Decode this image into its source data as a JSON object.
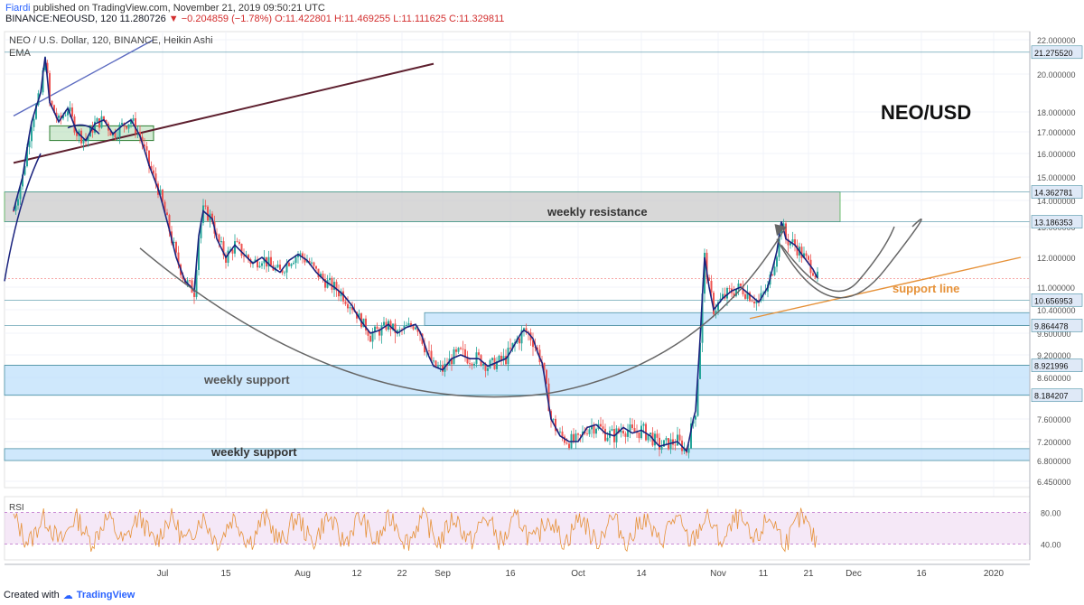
{
  "header": {
    "author": "Fiardi",
    "published": "published on TradingView.com, November 21, 2019 09:50:21 UTC",
    "symbol": "BINANCE:NEOUSD, 120",
    "last": "11.280726",
    "change": "−0.204859 (−1.78%)",
    "open": "O:11.422801",
    "high": "H:11.469255",
    "low": "L:11.111625",
    "close": "C:11.329811"
  },
  "footer": {
    "created": "Created with",
    "brand": "TradingView"
  },
  "chart_data": {
    "type": "candlestick",
    "title": "NEO / U.S. Dollar, 120, BINANCE, Heikin Ashi",
    "indicator": "EMA",
    "big_label": "NEO/USD",
    "colors": {
      "up": "#26a69a",
      "down": "#ef5350",
      "ema": "#1a237e",
      "zone": "#bbdefb",
      "resistance": "#c8c8c8",
      "support_line": "#e69138",
      "rsi": "#e69138"
    },
    "y_ticks": [
      22.0,
      20.0,
      18.0,
      17.0,
      16.0,
      15.0,
      14.0,
      13.0,
      12.0,
      11.0,
      10.4,
      9.6,
      9.2,
      8.6,
      8.2,
      7.6,
      7.2,
      6.8,
      6.45
    ],
    "y_tick_labels": [
      "22.000000",
      "20.000000",
      "18.000000",
      "17.000000",
      "16.000000",
      "15.000000",
      "14.000000",
      "13.000000",
      "12.000000",
      "11.000000",
      "10.400000",
      "9.600000",
      "9.200000",
      "8.600000",
      "8.200000",
      "7.600000",
      "7.200000",
      "6.800000",
      "6.450000"
    ],
    "price_flags": [
      {
        "value": 21.27552,
        "label": "21.275520"
      },
      {
        "value": 14.362781,
        "label": "14.362781"
      },
      {
        "value": 13.186353,
        "label": "13.186353"
      },
      {
        "value": 10.656953,
        "label": "10.656953"
      },
      {
        "value": 9.864478,
        "label": "9.864478"
      },
      {
        "value": 8.921996,
        "label": "8.921996"
      },
      {
        "value": 8.184207,
        "label": "8.184207"
      }
    ],
    "x_tick_labels": [
      "Jul",
      "15",
      "Aug",
      "12",
      "22",
      "Sep",
      "16",
      "Oct",
      "14",
      "Nov",
      "11",
      "21",
      "Dec",
      "16",
      "2020"
    ],
    "x_tick_days": [
      0,
      14,
      31,
      43,
      53,
      62,
      77,
      92,
      106,
      123,
      133,
      143,
      153,
      168,
      184
    ],
    "zones": [
      {
        "name": "weekly resistance",
        "from": 13.186353,
        "to": 14.362781,
        "label": "weekly resistance"
      },
      {
        "name": "upper support zone",
        "from": 9.864478,
        "to": 10.3,
        "label": ""
      },
      {
        "name": "weekly support",
        "from": 8.184207,
        "to": 8.921996,
        "label": "weekly support"
      },
      {
        "name": "lower weekly support",
        "from": 6.8,
        "to": 7.05,
        "label": "weekly support"
      }
    ],
    "support_line_label": "support line",
    "price_path": [
      [
        -33,
        13.6
      ],
      [
        -31,
        15.0
      ],
      [
        -29,
        17.5
      ],
      [
        -27,
        19.0
      ],
      [
        -26,
        21.0
      ],
      [
        -25,
        18.5
      ],
      [
        -23,
        17.5
      ],
      [
        -21,
        18.2
      ],
      [
        -19,
        17.0
      ],
      [
        -17,
        16.6
      ],
      [
        -15,
        17.4
      ],
      [
        -13,
        17.6
      ],
      [
        -11,
        16.9
      ],
      [
        -9,
        17.3
      ],
      [
        -7,
        17.6
      ],
      [
        -5,
        16.8
      ],
      [
        -3,
        15.5
      ],
      [
        -1,
        14.5
      ],
      [
        1,
        13.2
      ],
      [
        3,
        12.0
      ],
      [
        5,
        11.2
      ],
      [
        7,
        10.9
      ],
      [
        8,
        12.7
      ],
      [
        9,
        13.6
      ],
      [
        11,
        13.3
      ],
      [
        12,
        12.6
      ],
      [
        14,
        12.0
      ],
      [
        16,
        12.4
      ],
      [
        18,
        12.1
      ],
      [
        20,
        11.8
      ],
      [
        22,
        12.0
      ],
      [
        24,
        11.7
      ],
      [
        26,
        11.5
      ],
      [
        28,
        11.9
      ],
      [
        30,
        12.1
      ],
      [
        32,
        11.9
      ],
      [
        34,
        11.5
      ],
      [
        36,
        11.2
      ],
      [
        38,
        11.0
      ],
      [
        40,
        10.8
      ],
      [
        42,
        10.5
      ],
      [
        44,
        10.0
      ],
      [
        46,
        9.6
      ],
      [
        48,
        9.7
      ],
      [
        50,
        9.9
      ],
      [
        52,
        9.6
      ],
      [
        54,
        9.8
      ],
      [
        56,
        9.9
      ],
      [
        58,
        9.4
      ],
      [
        60,
        8.9
      ],
      [
        62,
        8.8
      ],
      [
        64,
        9.1
      ],
      [
        66,
        9.2
      ],
      [
        68,
        9.1
      ],
      [
        70,
        9.1
      ],
      [
        72,
        8.9
      ],
      [
        74,
        9.0
      ],
      [
        76,
        9.1
      ],
      [
        78,
        9.4
      ],
      [
        80,
        9.7
      ],
      [
        82,
        9.5
      ],
      [
        84,
        9.0
      ],
      [
        86,
        7.6
      ],
      [
        88,
        7.3
      ],
      [
        90,
        7.2
      ],
      [
        92,
        7.2
      ],
      [
        94,
        7.45
      ],
      [
        96,
        7.5
      ],
      [
        98,
        7.35
      ],
      [
        100,
        7.3
      ],
      [
        102,
        7.45
      ],
      [
        104,
        7.35
      ],
      [
        106,
        7.4
      ],
      [
        108,
        7.3
      ],
      [
        110,
        7.1
      ],
      [
        112,
        7.15
      ],
      [
        114,
        7.2
      ],
      [
        116,
        7.0
      ],
      [
        118,
        7.8
      ],
      [
        119,
        9.5
      ],
      [
        120,
        12.0
      ],
      [
        121,
        11.0
      ],
      [
        122,
        10.4
      ],
      [
        124,
        10.7
      ],
      [
        126,
        10.9
      ],
      [
        128,
        11.0
      ],
      [
        130,
        10.8
      ],
      [
        132,
        10.6
      ],
      [
        134,
        11.0
      ],
      [
        136,
        12.2
      ],
      [
        137,
        13.2
      ],
      [
        138,
        12.6
      ],
      [
        140,
        12.4
      ],
      [
        142,
        12.0
      ],
      [
        144,
        11.6
      ],
      [
        145,
        11.3
      ]
    ],
    "trendlines": [
      {
        "name": "upper purple channel line",
        "from": [
          -33,
          17.8
        ],
        "to": [
          -2,
          22.0
        ]
      },
      {
        "name": "maroon trend line",
        "from": [
          -33,
          15.6
        ],
        "to": [
          60,
          20.6
        ]
      },
      {
        "name": "support line",
        "from": [
          130,
          10.1
        ],
        "to": [
          190,
          12.0
        ]
      }
    ],
    "rsi": {
      "label": "RSI",
      "levels": [
        80,
        40
      ],
      "level_labels": [
        "80.00",
        "40.00"
      ]
    }
  }
}
